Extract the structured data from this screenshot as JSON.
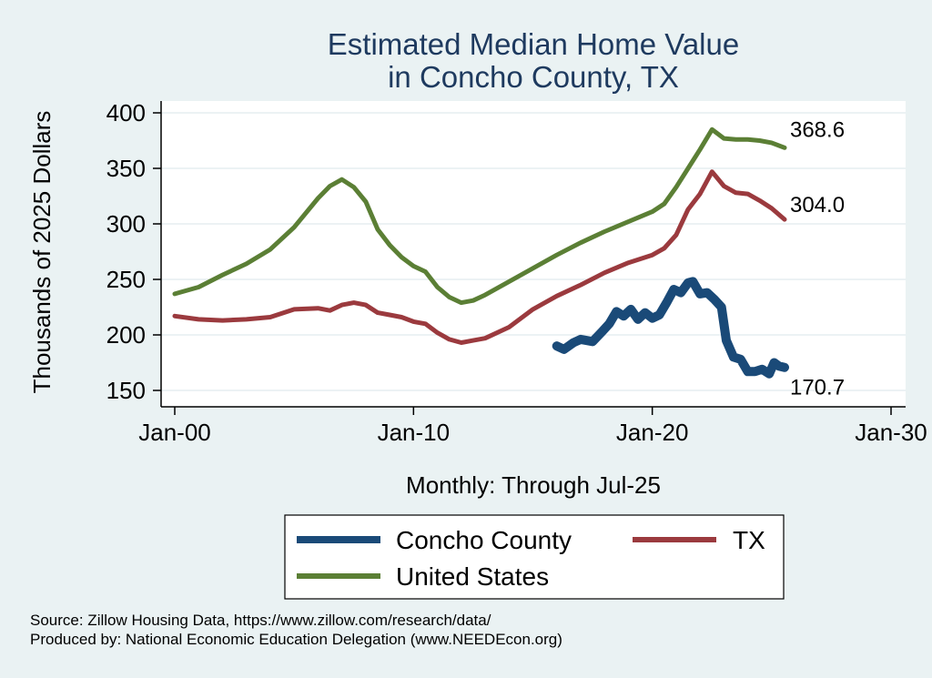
{
  "chart_data": {
    "type": "line",
    "title": [
      "Estimated Median Home Value",
      "in Concho County, TX"
    ],
    "ylabel": "Thousands of 2025 Dollars",
    "xlabel": "Monthly: Through Jul-25",
    "x_ticks": [
      {
        "value": 2000,
        "label": "Jan-00"
      },
      {
        "value": 2010,
        "label": "Jan-10"
      },
      {
        "value": 2020,
        "label": "Jan-20"
      },
      {
        "value": 2030,
        "label": "Jan-30"
      }
    ],
    "y_ticks": [
      150,
      200,
      250,
      300,
      350,
      400
    ],
    "xlim": [
      2000,
      2030
    ],
    "ylim": [
      150,
      400
    ],
    "grid": true,
    "legend_position": "bottom",
    "series": [
      {
        "name": "Concho County",
        "color": "#1a4a78",
        "end_label": "170.7",
        "points": [
          [
            2016.0,
            190
          ],
          [
            2016.3,
            187
          ],
          [
            2016.7,
            193
          ],
          [
            2017.0,
            196
          ],
          [
            2017.5,
            194
          ],
          [
            2017.9,
            203
          ],
          [
            2018.2,
            210
          ],
          [
            2018.5,
            221
          ],
          [
            2018.8,
            217
          ],
          [
            2019.1,
            223
          ],
          [
            2019.4,
            214
          ],
          [
            2019.7,
            220
          ],
          [
            2020.0,
            215
          ],
          [
            2020.3,
            218
          ],
          [
            2020.6,
            229
          ],
          [
            2020.9,
            241
          ],
          [
            2021.2,
            238
          ],
          [
            2021.5,
            247
          ],
          [
            2021.7,
            248
          ],
          [
            2022.0,
            237
          ],
          [
            2022.3,
            238
          ],
          [
            2022.6,
            232
          ],
          [
            2022.9,
            225
          ],
          [
            2023.1,
            195
          ],
          [
            2023.4,
            180
          ],
          [
            2023.7,
            178
          ],
          [
            2024.0,
            167
          ],
          [
            2024.3,
            167
          ],
          [
            2024.6,
            169
          ],
          [
            2024.9,
            165
          ],
          [
            2025.1,
            175
          ],
          [
            2025.3,
            172
          ],
          [
            2025.54,
            170.7
          ]
        ]
      },
      {
        "name": "TX",
        "color": "#9b3a3e",
        "end_label": "304.0",
        "points": [
          [
            2000.0,
            217
          ],
          [
            2001.0,
            214
          ],
          [
            2002.0,
            213
          ],
          [
            2003.0,
            214
          ],
          [
            2004.0,
            216
          ],
          [
            2005.0,
            223
          ],
          [
            2006.0,
            224
          ],
          [
            2006.5,
            222
          ],
          [
            2007.0,
            227
          ],
          [
            2007.5,
            229
          ],
          [
            2008.0,
            227
          ],
          [
            2008.5,
            220
          ],
          [
            2009.0,
            218
          ],
          [
            2009.5,
            216
          ],
          [
            2010.0,
            212
          ],
          [
            2010.5,
            210
          ],
          [
            2011.0,
            202
          ],
          [
            2011.5,
            196
          ],
          [
            2012.0,
            193
          ],
          [
            2012.5,
            195
          ],
          [
            2013.0,
            197
          ],
          [
            2014.0,
            207
          ],
          [
            2015.0,
            223
          ],
          [
            2016.0,
            235
          ],
          [
            2017.0,
            245
          ],
          [
            2018.0,
            256
          ],
          [
            2019.0,
            265
          ],
          [
            2020.0,
            272
          ],
          [
            2020.5,
            278
          ],
          [
            2021.0,
            290
          ],
          [
            2021.5,
            313
          ],
          [
            2022.0,
            327
          ],
          [
            2022.5,
            347
          ],
          [
            2023.0,
            334
          ],
          [
            2023.5,
            328
          ],
          [
            2024.0,
            327
          ],
          [
            2024.5,
            321
          ],
          [
            2025.0,
            314
          ],
          [
            2025.54,
            304.0
          ]
        ]
      },
      {
        "name": "United States",
        "color": "#5b7f35",
        "end_label": "368.6",
        "points": [
          [
            2000.0,
            237
          ],
          [
            2001.0,
            243
          ],
          [
            2002.0,
            254
          ],
          [
            2003.0,
            264
          ],
          [
            2004.0,
            277
          ],
          [
            2005.0,
            297
          ],
          [
            2006.0,
            323
          ],
          [
            2006.5,
            334
          ],
          [
            2007.0,
            340
          ],
          [
            2007.5,
            333
          ],
          [
            2008.0,
            320
          ],
          [
            2008.5,
            295
          ],
          [
            2009.0,
            281
          ],
          [
            2009.5,
            270
          ],
          [
            2010.0,
            262
          ],
          [
            2010.5,
            257
          ],
          [
            2011.0,
            243
          ],
          [
            2011.5,
            234
          ],
          [
            2012.0,
            229
          ],
          [
            2012.5,
            231
          ],
          [
            2013.0,
            236
          ],
          [
            2014.0,
            248
          ],
          [
            2015.0,
            260
          ],
          [
            2016.0,
            272
          ],
          [
            2017.0,
            283
          ],
          [
            2018.0,
            293
          ],
          [
            2019.0,
            302
          ],
          [
            2020.0,
            311
          ],
          [
            2020.5,
            318
          ],
          [
            2021.0,
            333
          ],
          [
            2021.5,
            350
          ],
          [
            2022.0,
            367
          ],
          [
            2022.5,
            385
          ],
          [
            2023.0,
            377
          ],
          [
            2023.5,
            376
          ],
          [
            2024.0,
            376
          ],
          [
            2024.5,
            375
          ],
          [
            2025.0,
            373
          ],
          [
            2025.54,
            368.6
          ]
        ]
      }
    ]
  },
  "footer": {
    "source": "Source: Zillow Housing Data, https://www.zillow.com/research/data/",
    "producer": "Produced by: National Economic Education Delegation (www.NEEDEcon.org)"
  }
}
